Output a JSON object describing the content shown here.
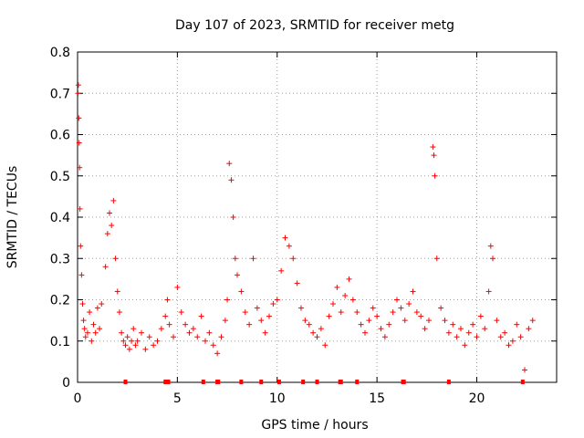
{
  "chart_data": {
    "type": "scatter",
    "title": "Day 107 of 2023, SRMTID for receiver metg",
    "xlabel": "GPS time / hours",
    "ylabel": "SRMTID / TECUs",
    "xlim": [
      0,
      24
    ],
    "ylim": [
      0,
      0.8
    ],
    "xticks": [
      0,
      5,
      10,
      15,
      20
    ],
    "xtick_labels": [
      "0",
      "5",
      "10",
      "15",
      "20"
    ],
    "yticks": [
      0,
      0.1,
      0.2,
      0.3,
      0.4,
      0.5,
      0.6,
      0.7,
      0.8
    ],
    "ytick_labels": [
      "0",
      "0.1",
      "0.2",
      "0.3",
      "0.4",
      "0.5",
      "0.6",
      "0.7",
      "0.8"
    ],
    "grid": true,
    "marker": "+",
    "color": "#ff0000",
    "series": [
      {
        "name": "SRMTID",
        "x": [
          0.02,
          0.04,
          0.06,
          0.08,
          0.1,
          0.12,
          0.15,
          0.2,
          0.25,
          0.3,
          0.35,
          0.4,
          0.5,
          0.6,
          0.7,
          0.8,
          0.9,
          1.0,
          1.1,
          1.2,
          1.4,
          1.5,
          1.6,
          1.7,
          1.8,
          1.9,
          2.0,
          2.1,
          2.2,
          2.3,
          2.4,
          2.5,
          2.6,
          2.7,
          2.8,
          2.9,
          3.0,
          3.2,
          3.4,
          3.6,
          3.8,
          4.0,
          4.2,
          4.4,
          4.5,
          4.6,
          4.8,
          5.0,
          5.2,
          5.4,
          5.6,
          5.8,
          6.0,
          6.2,
          6.4,
          6.6,
          6.8,
          7.0,
          7.2,
          7.4,
          7.5,
          7.6,
          7.7,
          7.8,
          7.9,
          8.0,
          8.2,
          8.4,
          8.6,
          8.8,
          9.0,
          9.2,
          9.4,
          9.6,
          9.8,
          10.0,
          10.2,
          10.4,
          10.6,
          10.8,
          11.0,
          11.2,
          11.4,
          11.6,
          11.8,
          12.0,
          12.2,
          12.4,
          12.6,
          12.8,
          13.0,
          13.2,
          13.4,
          13.6,
          13.8,
          14.0,
          14.2,
          14.4,
          14.6,
          14.8,
          15.0,
          15.2,
          15.4,
          15.6,
          15.8,
          16.0,
          16.2,
          16.4,
          16.6,
          16.8,
          17.0,
          17.2,
          17.4,
          17.6,
          17.8,
          17.85,
          17.9,
          18.0,
          18.2,
          18.4,
          18.6,
          18.8,
          19.0,
          19.2,
          19.4,
          19.6,
          19.8,
          20.0,
          20.2,
          20.4,
          20.6,
          20.7,
          20.8,
          21.0,
          21.2,
          21.4,
          21.6,
          21.8,
          22.0,
          22.2,
          22.4,
          22.6,
          22.8
        ],
        "y": [
          0.7,
          0.72,
          0.64,
          0.58,
          0.52,
          0.42,
          0.33,
          0.26,
          0.19,
          0.15,
          0.13,
          0.11,
          0.12,
          0.17,
          0.1,
          0.14,
          0.12,
          0.18,
          0.13,
          0.19,
          0.28,
          0.36,
          0.41,
          0.38,
          0.44,
          0.3,
          0.22,
          0.17,
          0.12,
          0.1,
          0.09,
          0.11,
          0.08,
          0.1,
          0.13,
          0.09,
          0.1,
          0.12,
          0.08,
          0.11,
          0.09,
          0.1,
          0.13,
          0.16,
          0.2,
          0.14,
          0.11,
          0.23,
          0.17,
          0.14,
          0.12,
          0.13,
          0.11,
          0.16,
          0.1,
          0.12,
          0.09,
          0.07,
          0.11,
          0.15,
          0.2,
          0.53,
          0.49,
          0.4,
          0.3,
          0.26,
          0.22,
          0.17,
          0.14,
          0.3,
          0.18,
          0.15,
          0.12,
          0.16,
          0.19,
          0.2,
          0.27,
          0.35,
          0.33,
          0.3,
          0.24,
          0.18,
          0.15,
          0.14,
          0.12,
          0.11,
          0.13,
          0.09,
          0.16,
          0.19,
          0.23,
          0.17,
          0.21,
          0.25,
          0.2,
          0.17,
          0.14,
          0.12,
          0.15,
          0.18,
          0.16,
          0.13,
          0.11,
          0.14,
          0.17,
          0.2,
          0.18,
          0.15,
          0.19,
          0.22,
          0.17,
          0.16,
          0.13,
          0.15,
          0.57,
          0.55,
          0.5,
          0.3,
          0.18,
          0.15,
          0.12,
          0.14,
          0.11,
          0.13,
          0.09,
          0.12,
          0.14,
          0.11,
          0.16,
          0.13,
          0.22,
          0.33,
          0.3,
          0.15,
          0.11,
          0.12,
          0.09,
          0.1,
          0.14,
          0.11,
          0.03,
          0.13,
          0.15
        ]
      }
    ],
    "baseline_marks_x": [
      2.4,
      4.4,
      4.5,
      4.55,
      6.3,
      7.0,
      7.05,
      8.2,
      9.2,
      10.1,
      11.3,
      12.0,
      13.15,
      13.2,
      14.0,
      16.3,
      16.35,
      18.6,
      22.3
    ]
  }
}
